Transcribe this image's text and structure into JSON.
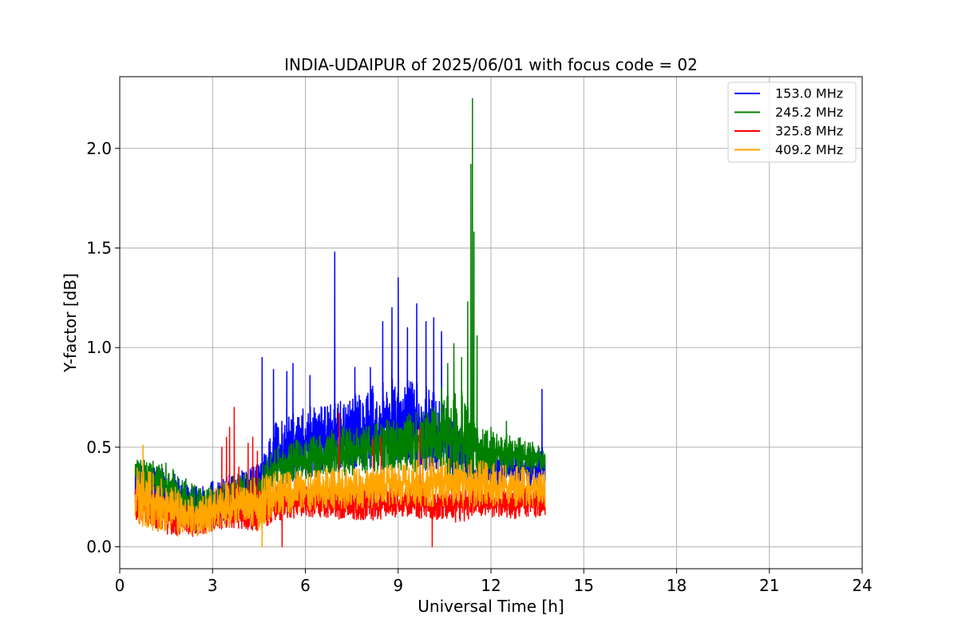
{
  "chart_data": {
    "type": "line",
    "title": "INDIA-UDAIPUR of 2025/06/01 with focus code = 02",
    "xlabel": "Universal Time [h]",
    "ylabel": "Y-factor [dB]",
    "xlim": [
      0,
      24
    ],
    "ylim": [
      -0.11,
      2.36
    ],
    "xticks": [
      0,
      3,
      6,
      9,
      12,
      15,
      18,
      21,
      24
    ],
    "xtick_labels": [
      "0",
      "3",
      "6",
      "9",
      "12",
      "15",
      "18",
      "21",
      "24"
    ],
    "yticks": [
      0.0,
      0.5,
      1.0,
      1.5,
      2.0
    ],
    "ytick_labels": [
      "0.0",
      "0.5",
      "1.0",
      "1.5",
      "2.0"
    ],
    "grid": true,
    "legend_position": "top-right",
    "series": [
      {
        "name": "153.0 MHz",
        "color": "#0000ff",
        "x_range": [
          0.5,
          13.75
        ],
        "noise_lo": [
          [
            0.5,
            0.16
          ],
          [
            1.5,
            0.12
          ],
          [
            2.5,
            0.06
          ],
          [
            3.5,
            0.12
          ],
          [
            4.5,
            0.18
          ],
          [
            5.0,
            0.3
          ],
          [
            6.0,
            0.35
          ],
          [
            7.0,
            0.38
          ],
          [
            8.0,
            0.4
          ],
          [
            9.0,
            0.42
          ],
          [
            10.0,
            0.38
          ],
          [
            11.0,
            0.35
          ],
          [
            11.5,
            0.3
          ],
          [
            12.0,
            0.28
          ],
          [
            13.0,
            0.28
          ],
          [
            13.75,
            0.3
          ]
        ],
        "noise_hi": [
          [
            0.5,
            0.42
          ],
          [
            1.5,
            0.4
          ],
          [
            2.5,
            0.3
          ],
          [
            3.5,
            0.36
          ],
          [
            4.5,
            0.42
          ],
          [
            5.0,
            0.62
          ],
          [
            6.0,
            0.7
          ],
          [
            7.0,
            0.72
          ],
          [
            8.0,
            0.8
          ],
          [
            9.0,
            0.85
          ],
          [
            10.0,
            0.8
          ],
          [
            11.0,
            0.62
          ],
          [
            11.5,
            0.45
          ],
          [
            12.0,
            0.48
          ],
          [
            13.0,
            0.5
          ],
          [
            13.75,
            0.5
          ]
        ],
        "spikes": [
          [
            4.6,
            0.95
          ],
          [
            4.97,
            0.89
          ],
          [
            5.4,
            0.88
          ],
          [
            5.6,
            0.92
          ],
          [
            6.15,
            0.86
          ],
          [
            6.95,
            1.48
          ],
          [
            7.6,
            0.9
          ],
          [
            8.1,
            0.9
          ],
          [
            8.5,
            1.13
          ],
          [
            8.8,
            1.2
          ],
          [
            9.0,
            1.35
          ],
          [
            9.3,
            1.1
          ],
          [
            9.6,
            1.22
          ],
          [
            9.9,
            1.13
          ],
          [
            10.15,
            1.15
          ],
          [
            10.4,
            1.08
          ],
          [
            13.65,
            0.79
          ]
        ]
      },
      {
        "name": "245.2 MHz",
        "color": "#008000",
        "x_range": [
          0.5,
          13.75
        ],
        "noise_lo": [
          [
            0.5,
            0.3
          ],
          [
            1.5,
            0.2
          ],
          [
            2.5,
            0.08
          ],
          [
            3.5,
            0.15
          ],
          [
            4.5,
            0.18
          ],
          [
            5.0,
            0.3
          ],
          [
            6.0,
            0.33
          ],
          [
            7.0,
            0.35
          ],
          [
            8.0,
            0.36
          ],
          [
            9.0,
            0.36
          ],
          [
            10.0,
            0.38
          ],
          [
            11.0,
            0.35
          ],
          [
            11.5,
            0.35
          ],
          [
            12.0,
            0.36
          ],
          [
            13.0,
            0.36
          ],
          [
            13.75,
            0.38
          ]
        ],
        "noise_hi": [
          [
            0.5,
            0.45
          ],
          [
            1.5,
            0.42
          ],
          [
            2.5,
            0.3
          ],
          [
            3.5,
            0.35
          ],
          [
            4.5,
            0.4
          ],
          [
            5.0,
            0.5
          ],
          [
            6.0,
            0.55
          ],
          [
            7.0,
            0.6
          ],
          [
            8.0,
            0.62
          ],
          [
            9.0,
            0.65
          ],
          [
            10.0,
            0.7
          ],
          [
            11.0,
            0.8
          ],
          [
            11.5,
            0.6
          ],
          [
            12.0,
            0.58
          ],
          [
            13.0,
            0.55
          ],
          [
            13.75,
            0.5
          ]
        ],
        "spikes": [
          [
            10.4,
            0.8
          ],
          [
            10.6,
            0.92
          ],
          [
            10.8,
            1.02
          ],
          [
            11.05,
            0.95
          ],
          [
            11.25,
            1.23
          ],
          [
            11.35,
            1.92
          ],
          [
            11.4,
            2.25
          ],
          [
            11.45,
            1.58
          ],
          [
            11.55,
            1.06
          ],
          [
            12.0,
            0.6
          ],
          [
            12.5,
            0.63
          ]
        ]
      },
      {
        "name": "325.8 MHz",
        "color": "#ff0000",
        "x_range": [
          0.5,
          13.75
        ],
        "noise_lo": [
          [
            0.5,
            0.12
          ],
          [
            1.5,
            0.06
          ],
          [
            2.5,
            0.05
          ],
          [
            3.5,
            0.1
          ],
          [
            4.5,
            0.08
          ],
          [
            5.0,
            0.12
          ],
          [
            6.0,
            0.15
          ],
          [
            7.0,
            0.14
          ],
          [
            8.0,
            0.13
          ],
          [
            9.0,
            0.15
          ],
          [
            10.0,
            0.14
          ],
          [
            11.0,
            0.12
          ],
          [
            11.5,
            0.15
          ],
          [
            12.0,
            0.15
          ],
          [
            13.0,
            0.14
          ],
          [
            13.75,
            0.15
          ]
        ],
        "noise_hi": [
          [
            0.5,
            0.3
          ],
          [
            1.5,
            0.25
          ],
          [
            2.5,
            0.2
          ],
          [
            3.5,
            0.25
          ],
          [
            4.5,
            0.3
          ],
          [
            5.0,
            0.3
          ],
          [
            6.0,
            0.3
          ],
          [
            7.0,
            0.3
          ],
          [
            8.0,
            0.3
          ],
          [
            9.0,
            0.3
          ],
          [
            10.0,
            0.3
          ],
          [
            11.0,
            0.3
          ],
          [
            11.5,
            0.3
          ],
          [
            12.0,
            0.3
          ],
          [
            13.0,
            0.3
          ],
          [
            13.75,
            0.3
          ]
        ],
        "spikes": [
          [
            3.3,
            0.5
          ],
          [
            3.45,
            0.55
          ],
          [
            3.55,
            0.6
          ],
          [
            3.7,
            0.7
          ],
          [
            3.85,
            0.4
          ],
          [
            4.15,
            0.52
          ],
          [
            4.3,
            0.55
          ],
          [
            4.45,
            0.48
          ],
          [
            5.25,
            0.0
          ],
          [
            7.1,
            0.67
          ],
          [
            8.2,
            0.54
          ],
          [
            8.45,
            0.55
          ],
          [
            9.7,
            0.6
          ],
          [
            10.1,
            0.0
          ]
        ]
      },
      {
        "name": "409.2 MHz",
        "color": "#ffa500",
        "x_range": [
          0.5,
          13.75
        ],
        "noise_lo": [
          [
            0.5,
            0.12
          ],
          [
            1.5,
            0.05
          ],
          [
            2.5,
            0.05
          ],
          [
            3.5,
            0.1
          ],
          [
            4.5,
            0.08
          ],
          [
            5.0,
            0.16
          ],
          [
            6.0,
            0.18
          ],
          [
            7.0,
            0.18
          ],
          [
            8.0,
            0.19
          ],
          [
            9.0,
            0.2
          ],
          [
            10.0,
            0.2
          ],
          [
            11.0,
            0.2
          ],
          [
            11.5,
            0.2
          ],
          [
            12.0,
            0.2
          ],
          [
            13.0,
            0.2
          ],
          [
            13.75,
            0.2
          ]
        ],
        "noise_hi": [
          [
            0.5,
            0.43
          ],
          [
            1.5,
            0.33
          ],
          [
            2.5,
            0.25
          ],
          [
            3.5,
            0.33
          ],
          [
            4.5,
            0.35
          ],
          [
            5.0,
            0.38
          ],
          [
            6.0,
            0.38
          ],
          [
            7.0,
            0.4
          ],
          [
            8.0,
            0.4
          ],
          [
            9.0,
            0.42
          ],
          [
            10.0,
            0.45
          ],
          [
            11.0,
            0.45
          ],
          [
            11.5,
            0.44
          ],
          [
            12.0,
            0.42
          ],
          [
            13.0,
            0.4
          ],
          [
            13.75,
            0.4
          ]
        ],
        "spikes": [
          [
            0.75,
            0.51
          ],
          [
            4.6,
            0.0
          ]
        ]
      }
    ]
  }
}
